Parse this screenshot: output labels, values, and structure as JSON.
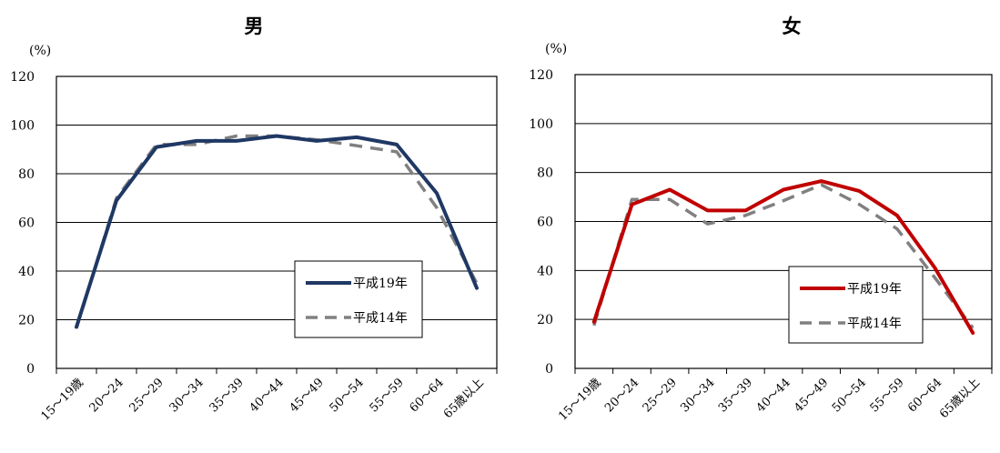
{
  "chart_data": [
    {
      "type": "line",
      "title": "男",
      "ylabel": "(%)",
      "ylim": [
        0,
        120
      ],
      "yticks": [
        0,
        20,
        40,
        60,
        80,
        100,
        120
      ],
      "grid": true,
      "legend": "bottom-right",
      "categories": [
        "15～19歳",
        "20～24",
        "25～29",
        "30～34",
        "35～39",
        "40～44",
        "45～49",
        "50～54",
        "55～59",
        "60～64",
        "65歳以上"
      ],
      "series": [
        {
          "name": "平成19年",
          "color": "#1f3864",
          "style": "solid",
          "values": [
            17,
            69,
            91,
            93.5,
            93.5,
            95.5,
            93.5,
            95,
            92,
            72,
            33
          ]
        },
        {
          "name": "平成14年",
          "color": "#808080",
          "style": "dashed",
          "values": [
            16.5,
            70,
            92,
            92,
            95.5,
            95.5,
            94,
            91.5,
            89,
            66,
            35
          ]
        }
      ]
    },
    {
      "type": "line",
      "title": "女",
      "ylabel": "(%)",
      "ylim": [
        0,
        120
      ],
      "yticks": [
        0,
        20,
        40,
        60,
        80,
        100,
        120
      ],
      "grid": true,
      "legend": "bottom-right",
      "categories": [
        "15～19歳",
        "20～24",
        "25～29",
        "30～34",
        "35～39",
        "40～44",
        "45～49",
        "50～54",
        "55～59",
        "60～64",
        "65歳以上"
      ],
      "series": [
        {
          "name": "平成19年",
          "color": "#c00000",
          "style": "solid",
          "values": [
            19,
            67,
            73,
            64.5,
            64.5,
            73,
            76.5,
            72.5,
            62.5,
            41,
            14.5
          ]
        },
        {
          "name": "平成14年",
          "color": "#808080",
          "style": "dashed",
          "values": [
            17.5,
            69,
            69,
            59,
            62.5,
            68.5,
            75,
            67,
            57,
            37,
            16.5
          ]
        }
      ]
    }
  ]
}
